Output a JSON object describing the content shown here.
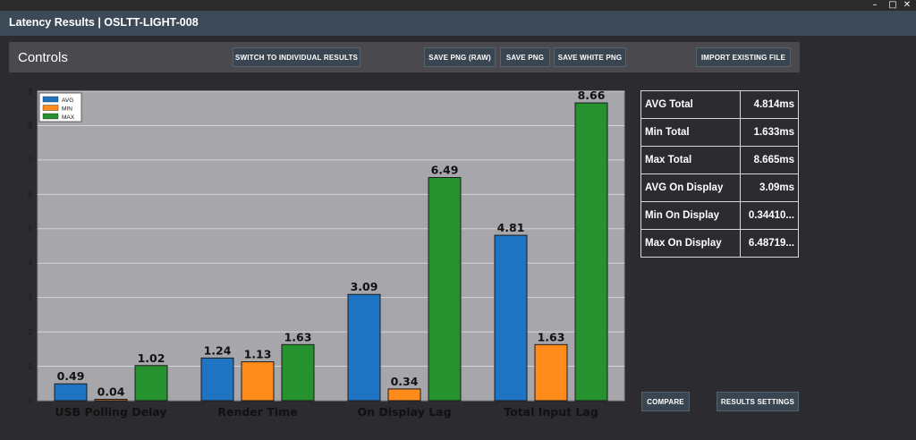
{
  "window": {
    "title": "Latency Results | OSLTT-LIGHT-008",
    "controls": {
      "minimize": "–",
      "maximize": "□",
      "close": "✕"
    }
  },
  "controls_bar": {
    "title": "Controls",
    "buttons": {
      "switch": "SWITCH TO INDIVIDUAL RESULTS",
      "save_raw": "SAVE PNG (RAW)",
      "save_png": "SAVE PNG",
      "save_white": "SAVE WHITE PNG",
      "import": "IMPORT EXISTING FILE"
    }
  },
  "stats": [
    {
      "label": "AVG Total",
      "value": "4.814ms"
    },
    {
      "label": "Min Total",
      "value": "1.633ms"
    },
    {
      "label": "Max Total",
      "value": "8.665ms"
    },
    {
      "label": "AVG On Display",
      "value": "3.09ms"
    },
    {
      "label": "Min On Display",
      "value": "0.34410..."
    },
    {
      "label": "Max On Display",
      "value": "6.48719..."
    }
  ],
  "bottom_buttons": {
    "compare": "COMPARE",
    "results_settings": "RESULTS SETTINGS"
  },
  "chart_data": {
    "type": "bar",
    "categories": [
      "USB Polling Delay",
      "Render Time",
      "On Display Lag",
      "Total Input Lag"
    ],
    "series": [
      {
        "name": "AVG",
        "color": "#1f73c3",
        "values": [
          0.49,
          1.24,
          3.09,
          4.81
        ],
        "labels": [
          "0.49",
          "1.24",
          "3.09",
          "4.81"
        ]
      },
      {
        "name": "MIN",
        "color": "#ff8c1a",
        "values": [
          0.04,
          1.13,
          0.34,
          1.63
        ],
        "labels": [
          "0.04",
          "1.13",
          "0.34",
          "1.63"
        ]
      },
      {
        "name": "MAX",
        "color": "#26912f",
        "values": [
          1.02,
          1.63,
          6.49,
          8.66
        ],
        "labels": [
          "1.02",
          "1.63",
          "6.49",
          "8.66"
        ]
      }
    ],
    "yticks": [
      "0",
      "1",
      "2",
      "3",
      "4",
      "5",
      "6",
      "7",
      "8",
      "9"
    ],
    "ylim": [
      0,
      9
    ],
    "grid": true,
    "legend": "top-left",
    "plot_background": "#a7a6ab"
  }
}
